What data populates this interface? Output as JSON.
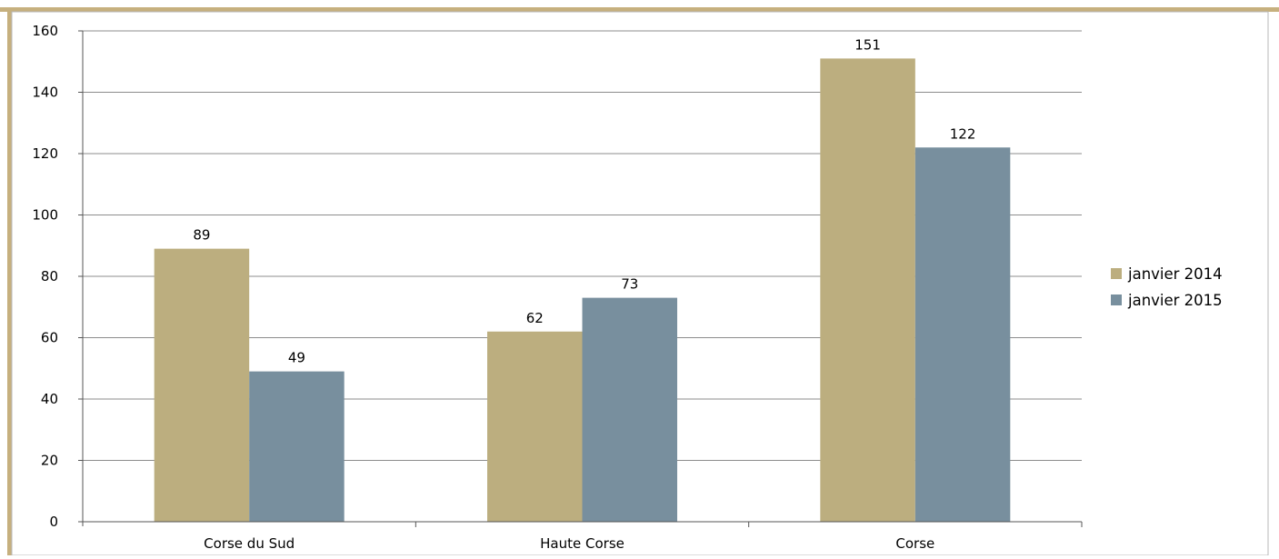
{
  "chart_data": {
    "type": "bar",
    "categories": [
      "Corse du Sud",
      "Haute Corse",
      "Corse"
    ],
    "series": [
      {
        "name": "janvier 2014",
        "values": [
          89,
          62,
          151
        ]
      },
      {
        "name": "janvier 2015",
        "values": [
          49,
          73,
          122
        ]
      }
    ],
    "ylim": [
      0,
      160
    ],
    "yticks": [
      0,
      20,
      40,
      60,
      80,
      100,
      120,
      140,
      160
    ],
    "grid": true,
    "legend_position": "right",
    "data_labels": true
  },
  "colors": {
    "frame": "#c6b07e",
    "janvier 2014": "#bcae7f",
    "janvier 2015": "#788f9e",
    "gridline": "#8c8c8c"
  }
}
